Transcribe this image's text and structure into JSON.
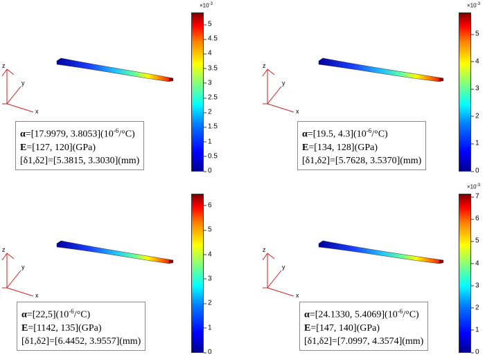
{
  "panels": [
    {
      "alpha_symbol": "α",
      "alpha": "=[17.9979, 3.8053](10",
      "alpha_exp": "-6",
      "alpha_unit": "/°C)",
      "e_symbol": "E",
      "e": "=[127, 120](GPa)",
      "delta": "[δ1,δ2]=[5.3815, 3.3030](mm)",
      "colorbar": {
        "multiplier": "×10",
        "multiplier_exp": "-3",
        "ticks": [
          "0",
          "0.5",
          "1",
          "1.5",
          "2",
          "2.5",
          "3",
          "3.5",
          "4",
          "4.5",
          "5"
        ],
        "tick_values": [
          0,
          0.5,
          1,
          1.5,
          2,
          2.5,
          3,
          3.5,
          4,
          4.5,
          5
        ],
        "max": 5.38
      }
    },
    {
      "alpha_symbol": "α",
      "alpha": "=[19.5, 4.3](10",
      "alpha_exp": "-6",
      "alpha_unit": "/°C)",
      "e_symbol": "E",
      "e": "=[134, 128](GPa)",
      "delta": "[δ1,δ2]=[5.7628, 3.5370](mm)",
      "colorbar": {
        "multiplier": "×10",
        "multiplier_exp": "-3",
        "ticks": [
          "0",
          "1",
          "2",
          "3",
          "4",
          "5"
        ],
        "tick_values": [
          0,
          1,
          2,
          3,
          4,
          5
        ],
        "max": 5.76
      }
    },
    {
      "alpha_symbol": "α",
      "alpha": "=[22,5](10",
      "alpha_exp": "-6",
      "alpha_unit": "/°C)",
      "e_symbol": "E",
      "e": "=[1142, 135](GPa)",
      "delta": "[δ1,δ2]=[6.4452, 3.9557](mm)",
      "colorbar": {
        "multiplier": "",
        "multiplier_exp": "",
        "ticks": [
          "0",
          "1",
          "2",
          "3",
          "4",
          "5",
          "6"
        ],
        "tick_values": [
          0,
          1,
          2,
          3,
          4,
          5,
          6
        ],
        "max": 6.45
      }
    },
    {
      "alpha_symbol": "α",
      "alpha": "=[24.1330, 5.4069](10",
      "alpha_exp": "-6",
      "alpha_unit": "/°C)",
      "e_symbol": "E",
      "e": "=[147, 140](GPa)",
      "delta": "[δ1,δ2]=[7.0997, 4.3574](mm)",
      "colorbar": {
        "multiplier": "×10",
        "multiplier_exp": "-3",
        "ticks": [
          "0",
          "1",
          "2",
          "3",
          "4",
          "5",
          "6",
          "7"
        ],
        "tick_values": [
          0,
          1,
          2,
          3,
          4,
          5,
          6,
          7
        ],
        "max": 7.1
      }
    }
  ],
  "axes_labels": {
    "x": "x",
    "y": "y",
    "z": "z"
  }
}
